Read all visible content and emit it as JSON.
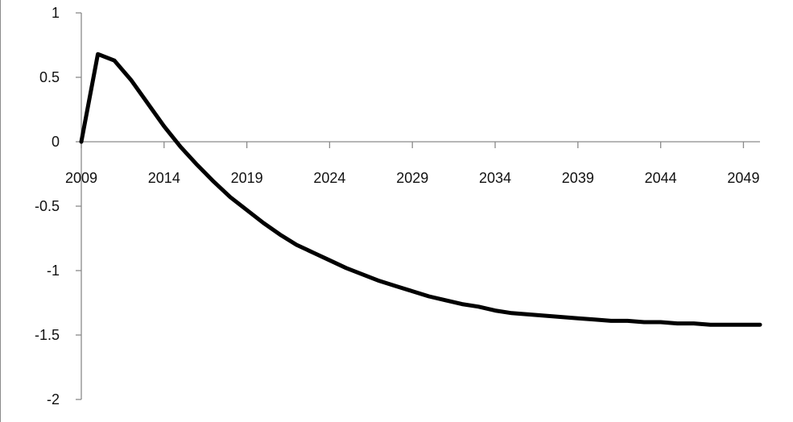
{
  "chart_data": {
    "type": "line",
    "title": "",
    "xlabel": "",
    "ylabel": "",
    "xlim": [
      2009,
      2050
    ],
    "ylim": [
      -2,
      1
    ],
    "x_ticks": [
      2009,
      2014,
      2019,
      2024,
      2029,
      2034,
      2039,
      2044,
      2049
    ],
    "y_ticks": [
      1,
      0.5,
      0,
      -0.5,
      -1,
      -1.5,
      -2
    ],
    "grid": false,
    "legend": "none",
    "series": [
      {
        "color": "#000000",
        "x": [
          2009,
          2010,
          2011,
          2012,
          2013,
          2014,
          2015,
          2016,
          2017,
          2018,
          2019,
          2020,
          2021,
          2022,
          2023,
          2024,
          2025,
          2026,
          2027,
          2028,
          2029,
          2030,
          2031,
          2032,
          2033,
          2034,
          2035,
          2036,
          2037,
          2038,
          2039,
          2040,
          2041,
          2042,
          2043,
          2044,
          2045,
          2046,
          2047,
          2048,
          2049,
          2050
        ],
        "values": [
          0,
          0.68,
          0.63,
          0.48,
          0.3,
          0.12,
          -0.04,
          -0.18,
          -0.31,
          -0.43,
          -0.53,
          -0.63,
          -0.72,
          -0.8,
          -0.86,
          -0.92,
          -0.98,
          -1.03,
          -1.08,
          -1.12,
          -1.16,
          -1.2,
          -1.23,
          -1.26,
          -1.28,
          -1.31,
          -1.33,
          -1.34,
          -1.35,
          -1.36,
          -1.37,
          -1.38,
          -1.39,
          -1.39,
          -1.4,
          -1.4,
          -1.41,
          -1.41,
          -1.42,
          -1.42,
          -1.42,
          -1.42
        ]
      }
    ]
  }
}
